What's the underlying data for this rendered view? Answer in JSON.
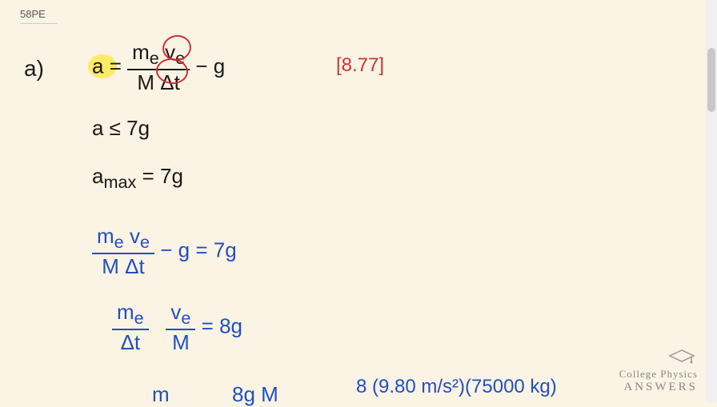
{
  "problem_label": "58PE",
  "part_label": "a)",
  "reference": "[8.77]",
  "eq1": {
    "lhs": "a",
    "num": "m<sub>e</sub> v<sub>e</sub>",
    "den": "M Δt",
    "tail": " − g"
  },
  "eq2": "a ≤ 7g",
  "eq3": "a<sub>max</sub> = 7g",
  "eq4": {
    "num": "m<sub>e</sub> v<sub>e</sub>",
    "den": "M Δt",
    "tail": " − g  =  7g"
  },
  "eq5": {
    "num1": "m<sub>e</sub>",
    "den1": "Δt",
    "num2": "v<sub>e</sub>",
    "den2": "M",
    "tail": " =  8g"
  },
  "eq6_left": "m",
  "eq6_mid": "8g M",
  "eq6_right": "8 (9.80 m/s²)(75000 kg)",
  "logo": {
    "line1": "College Physics",
    "line2": "ANSWERS"
  },
  "colors": {
    "black": "#1a1a1a",
    "blue": "#2050c0",
    "red": "#c33",
    "highlight": "#fce94f"
  }
}
